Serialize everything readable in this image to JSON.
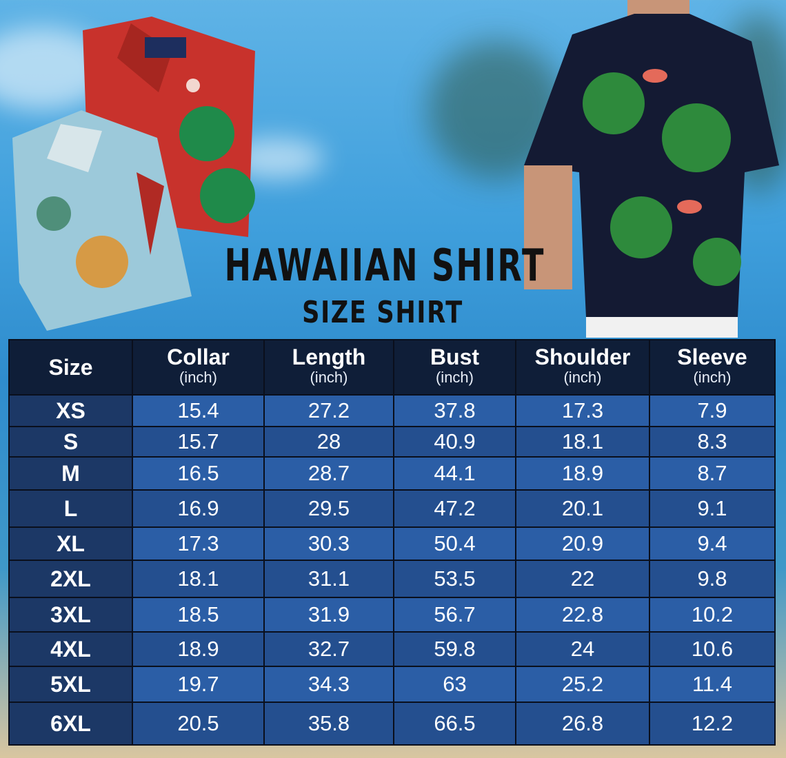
{
  "title": "HAWAIIAN SHIRT",
  "subtitle": "SIZE SHIRT",
  "colors": {
    "header": "#0f1e38",
    "size_column": "#1c3866",
    "cell_a": "#2b5ea6",
    "cell_b": "#244f8f",
    "background": "#3f9fdc"
  },
  "images": [
    "folded-red-hawaiian-shirt",
    "folded-light-blue-parrot-shirt",
    "model-wearing-flamingo-shirt"
  ],
  "table": {
    "headers": [
      {
        "label": "Size",
        "unit": ""
      },
      {
        "label": "Collar",
        "unit": "(inch)"
      },
      {
        "label": "Length",
        "unit": "(inch)"
      },
      {
        "label": "Bust",
        "unit": "(inch)"
      },
      {
        "label": "Shoulder",
        "unit": "(inch)"
      },
      {
        "label": "Sleeve",
        "unit": "(inch)"
      }
    ],
    "rows": [
      [
        "XS",
        "15.4",
        "27.2",
        "37.8",
        "17.3",
        "7.9"
      ],
      [
        "S",
        "15.7",
        "28",
        "40.9",
        "18.1",
        "8.3"
      ],
      [
        "M",
        "16.5",
        "28.7",
        "44.1",
        "18.9",
        "8.7"
      ],
      [
        "L",
        "16.9",
        "29.5",
        "47.2",
        "20.1",
        "9.1"
      ],
      [
        "XL",
        "17.3",
        "30.3",
        "50.4",
        "20.9",
        "9.4"
      ],
      [
        "2XL",
        "18.1",
        "31.1",
        "53.5",
        "22",
        "9.8"
      ],
      [
        "3XL",
        "18.5",
        "31.9",
        "56.7",
        "22.8",
        "10.2"
      ],
      [
        "4XL",
        "18.9",
        "32.7",
        "59.8",
        "24",
        "10.6"
      ],
      [
        "5XL",
        "19.7",
        "34.3",
        "63",
        "25.2",
        "11.4"
      ],
      [
        "6XL",
        "20.5",
        "35.8",
        "66.5",
        "26.8",
        "12.2"
      ]
    ]
  }
}
